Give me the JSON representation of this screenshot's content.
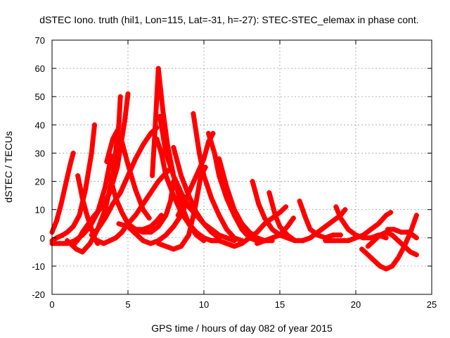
{
  "chart_data": {
    "type": "scatter",
    "title": "dSTEC Iono. truth (hil1, Lon=115, Lat=-31, h=-27): STEC-STEC_elemax in phase cont.",
    "xlabel": "GPS time / hours of day 082 of year 2015",
    "ylabel": "dSTEC  / TECUs",
    "xlim": [
      0,
      25
    ],
    "ylim": [
      -20,
      70
    ],
    "xticks": [
      0,
      5,
      10,
      15,
      20,
      25
    ],
    "yticks": [
      -20,
      -10,
      0,
      10,
      20,
      30,
      40,
      50,
      60,
      70
    ],
    "grid": true,
    "marker": "plus",
    "color": "#ff0000",
    "series": [
      {
        "x": [
          0.0,
          0.3,
          0.6,
          0.9,
          1.2,
          1.4
        ],
        "y": [
          2,
          6,
          12,
          19,
          26,
          30
        ]
      },
      {
        "x": [
          0.0,
          0.3,
          0.7,
          1.0,
          1.4,
          1.8,
          2.2,
          2.6,
          2.8
        ],
        "y": [
          -1,
          0,
          1,
          2,
          4,
          8,
          17,
          30,
          40
        ]
      },
      {
        "x": [
          0.0,
          0.5,
          1.0,
          1.5,
          2.0,
          2.5,
          3.0,
          3.5,
          3.9
        ],
        "y": [
          -2,
          -2,
          -2,
          -1,
          1,
          4,
          9,
          18,
          29
        ]
      },
      {
        "x": [
          1.0,
          1.6,
          2.0,
          2.5,
          3.0,
          3.5,
          4.0,
          4.4,
          4.5
        ],
        "y": [
          -1,
          -4,
          -5,
          -2,
          3,
          10,
          22,
          40,
          50
        ]
      },
      {
        "x": [
          1.5,
          1.8,
          2.0,
          2.4,
          2.8,
          3.3,
          3.8,
          4.3,
          4.8,
          5.0
        ],
        "y": [
          -2,
          0,
          2,
          5,
          8,
          11,
          16,
          25,
          42,
          51
        ]
      },
      {
        "x": [
          1.7,
          2.0,
          2.3,
          2.6,
          2.8,
          3.0
        ],
        "y": [
          22,
          14,
          8,
          3,
          0,
          -2
        ]
      },
      {
        "x": [
          2.6,
          3.0,
          3.5,
          4.0,
          4.5,
          5.0,
          5.5,
          6.0,
          6.5,
          6.9
        ],
        "y": [
          1,
          3,
          7,
          12,
          16,
          22,
          28,
          33,
          37,
          39
        ]
      },
      {
        "x": [
          3.0,
          3.4,
          3.8,
          4.2,
          4.6,
          5.0,
          5.5,
          6.0,
          6.5,
          7.0,
          7.5,
          7.9
        ],
        "y": [
          -1,
          -2,
          -1,
          0,
          2,
          5,
          8,
          12,
          16,
          20,
          23,
          25
        ]
      },
      {
        "x": [
          3.6,
          4.0,
          4.3,
          4.6,
          5.0,
          5.5,
          6.0,
          6.4
        ],
        "y": [
          27,
          35,
          38,
          34,
          26,
          17,
          10,
          7
        ]
      },
      {
        "x": [
          3.8,
          4.2,
          4.6,
          5.0,
          5.5,
          6.0,
          6.5,
          6.9,
          7.2
        ],
        "y": [
          22,
          14,
          9,
          5,
          3,
          3,
          4,
          6,
          8
        ]
      },
      {
        "x": [
          4.4,
          5.0,
          5.5,
          6.0,
          6.5,
          7.0,
          7.5,
          7.8,
          8.0
        ],
        "y": [
          5,
          4,
          3,
          2,
          2,
          4,
          8,
          13,
          20
        ]
      },
      {
        "x": [
          5.0,
          5.6,
          6.0,
          6.5,
          7.0,
          7.5,
          8.0,
          8.5,
          8.8
        ],
        "y": [
          4,
          1,
          -1,
          -2,
          -1,
          1,
          4,
          8,
          12
        ]
      },
      {
        "x": [
          6.6,
          6.8,
          7.0,
          7.3,
          7.6,
          8.0,
          8.5,
          9.0,
          9.5,
          10.0
        ],
        "y": [
          22,
          40,
          60,
          45,
          33,
          22,
          12,
          5,
          1,
          -1
        ]
      },
      {
        "x": [
          6.9,
          7.2,
          7.5,
          8.0,
          8.5,
          9.0,
          9.5,
          10.0,
          10.5,
          11.0
        ],
        "y": [
          35,
          30,
          22,
          15,
          9,
          5,
          2,
          0,
          -1,
          -1
        ]
      },
      {
        "x": [
          7.1,
          7.5,
          8.0,
          8.5,
          9.0,
          9.5,
          10.0,
          10.5,
          11.0,
          11.5,
          12.0
        ],
        "y": [
          43,
          30,
          22,
          16,
          11,
          8,
          5,
          3,
          1,
          0,
          -1
        ]
      },
      {
        "x": [
          7.0,
          7.5,
          8.0,
          8.5,
          9.0,
          9.4,
          9.8,
          10.1
        ],
        "y": [
          -2,
          -3,
          -4,
          -3,
          1,
          10,
          22,
          25
        ]
      },
      {
        "x": [
          8.0,
          8.5,
          9.0,
          9.5,
          10.0,
          10.5,
          11.0
        ],
        "y": [
          32,
          22,
          15,
          9,
          5,
          2,
          0
        ]
      },
      {
        "x": [
          8.3,
          8.7,
          9.0,
          9.5,
          10.0,
          10.3,
          10.6
        ],
        "y": [
          8,
          12,
          16,
          22,
          28,
          34,
          37
        ]
      },
      {
        "x": [
          9.3,
          9.7,
          10.0,
          10.5,
          11.0,
          11.5,
          12.0,
          12.5
        ],
        "y": [
          44,
          30,
          22,
          14,
          8,
          3,
          0,
          -1
        ]
      },
      {
        "x": [
          10.3,
          10.7,
          11.0,
          11.5,
          12.0,
          12.5,
          13.0,
          13.5
        ],
        "y": [
          37,
          30,
          22,
          14,
          8,
          3,
          0,
          -1
        ]
      },
      {
        "x": [
          11.0,
          11.5,
          12.0,
          12.5,
          13.0,
          13.5,
          14.0,
          14.5
        ],
        "y": [
          28,
          18,
          10,
          5,
          2,
          0,
          -1,
          -1
        ]
      },
      {
        "x": [
          10.5,
          11.0,
          11.5,
          12.0,
          12.5,
          13.0,
          13.5,
          14.0,
          14.5,
          15.0,
          15.4
        ],
        "y": [
          -1,
          -1,
          -2,
          -3,
          -2,
          0,
          2,
          5,
          7,
          9,
          11
        ]
      },
      {
        "x": [
          13.2,
          13.6,
          14.0,
          14.5,
          15.0,
          15.5,
          16.0
        ],
        "y": [
          20,
          12,
          7,
          3,
          1,
          0,
          -1
        ]
      },
      {
        "x": [
          14.3,
          14.7,
          15.0,
          15.5,
          16.0,
          16.5,
          17.0
        ],
        "y": [
          16,
          8,
          4,
          1,
          -1,
          -1,
          0
        ]
      },
      {
        "x": [
          13.5,
          14.0,
          14.5,
          15.0,
          15.5,
          15.9
        ],
        "y": [
          -2,
          -1,
          0,
          1,
          4,
          7
        ]
      },
      {
        "x": [
          16.3,
          16.7,
          17.0,
          17.5,
          18.0,
          18.5,
          19.0
        ],
        "y": [
          13,
          7,
          3,
          1,
          0,
          1,
          1
        ]
      },
      {
        "x": [
          16.5,
          17.0,
          17.5,
          18.0,
          18.5,
          19.0,
          19.3
        ],
        "y": [
          -1,
          0,
          2,
          4,
          6,
          8,
          10
        ]
      },
      {
        "x": [
          18.7,
          19.0,
          19.5,
          20.0,
          20.5,
          21.0,
          21.5,
          22.0
        ],
        "y": [
          11,
          7,
          3,
          1,
          0,
          0,
          1,
          0
        ]
      },
      {
        "x": [
          18.0,
          18.5,
          19.0,
          19.5,
          20.0,
          20.5,
          21.0,
          21.5,
          22.0,
          22.3
        ],
        "y": [
          -1,
          -1,
          -1,
          -1,
          0,
          1,
          3,
          5,
          8,
          9
        ]
      },
      {
        "x": [
          20.4,
          20.8,
          21.2,
          21.6,
          22.0,
          22.4,
          22.8,
          23.2,
          23.6,
          24.0
        ],
        "y": [
          -4,
          -6,
          -8,
          -10,
          -11,
          -10,
          -7,
          -3,
          2,
          8
        ]
      },
      {
        "x": [
          20.8,
          21.2,
          21.6,
          22.0,
          22.4,
          22.8,
          23.2,
          23.6,
          24.0
        ],
        "y": [
          -3,
          -1,
          1,
          2,
          1,
          -1,
          -3,
          -5,
          -6
        ]
      },
      {
        "x": [
          22.1,
          22.5,
          23.0,
          23.5,
          24.0
        ],
        "y": [
          3,
          3,
          2,
          2,
          0
        ]
      }
    ]
  }
}
